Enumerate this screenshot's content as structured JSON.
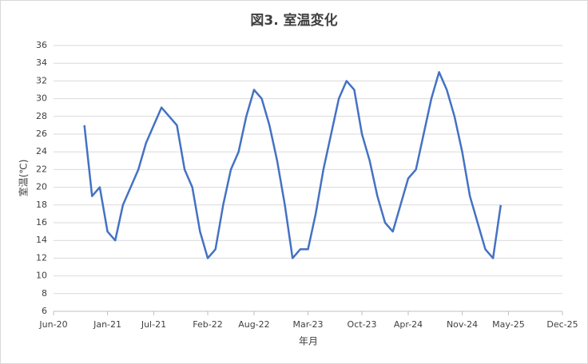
{
  "chart_data": {
    "type": "line",
    "title": "図3. 室温変化",
    "x_label": "年月",
    "y_label": "室温(℃)",
    "x": [
      "2020-10",
      "2020-11",
      "2020-12",
      "2021-01",
      "2021-02",
      "2021-03",
      "2021-04",
      "2021-05",
      "2021-06",
      "2021-07",
      "2021-08",
      "2021-09",
      "2021-10",
      "2021-11",
      "2021-12",
      "2022-01",
      "2022-02",
      "2022-03",
      "2022-04",
      "2022-05",
      "2022-06",
      "2022-07",
      "2022-08",
      "2022-09",
      "2022-10",
      "2022-11",
      "2022-12",
      "2023-01",
      "2023-02",
      "2023-03",
      "2023-04",
      "2023-05",
      "2023-06",
      "2023-07",
      "2023-08",
      "2023-09",
      "2023-10",
      "2023-11",
      "2023-12",
      "2024-01",
      "2024-02",
      "2024-03",
      "2024-04",
      "2024-05",
      "2024-06",
      "2024-07",
      "2024-08",
      "2024-09",
      "2024-10",
      "2024-11",
      "2024-12",
      "2025-01",
      "2025-02",
      "2025-03",
      "2025-04"
    ],
    "series": [
      {
        "name": "室温",
        "color": "#4472c4",
        "values": [
          27,
          19,
          20,
          15,
          14,
          18,
          20,
          22,
          25,
          27,
          29,
          28,
          27,
          22,
          20,
          15,
          12,
          13,
          18,
          22,
          24,
          28,
          31,
          30,
          27,
          23,
          18,
          12,
          13,
          13,
          17,
          22,
          26,
          30,
          32,
          31,
          26,
          23,
          19,
          16,
          15,
          18,
          21,
          22,
          26,
          30,
          33,
          31,
          28,
          24,
          19,
          16,
          13,
          12,
          18
        ]
      }
    ],
    "xlim": [
      "2020-06",
      "2025-12"
    ],
    "xticks": [
      {
        "value": "2020-06",
        "label": "Jun-20"
      },
      {
        "value": "2021-01",
        "label": "Jan-21"
      },
      {
        "value": "2021-07",
        "label": "Jul-21"
      },
      {
        "value": "2022-02",
        "label": "Feb-22"
      },
      {
        "value": "2022-08",
        "label": "Aug-22"
      },
      {
        "value": "2023-03",
        "label": "Mar-23"
      },
      {
        "value": "2023-10",
        "label": "Oct-23"
      },
      {
        "value": "2024-04",
        "label": "Apr-24"
      },
      {
        "value": "2024-11",
        "label": "Nov-24"
      },
      {
        "value": "2025-05",
        "label": "May-25"
      },
      {
        "value": "2025-12",
        "label": "Dec-25"
      }
    ],
    "ylim": [
      6,
      36
    ],
    "yticks": [
      6,
      8,
      10,
      12,
      14,
      16,
      18,
      20,
      22,
      24,
      26,
      28,
      30,
      32,
      34,
      36
    ],
    "grid": true
  }
}
